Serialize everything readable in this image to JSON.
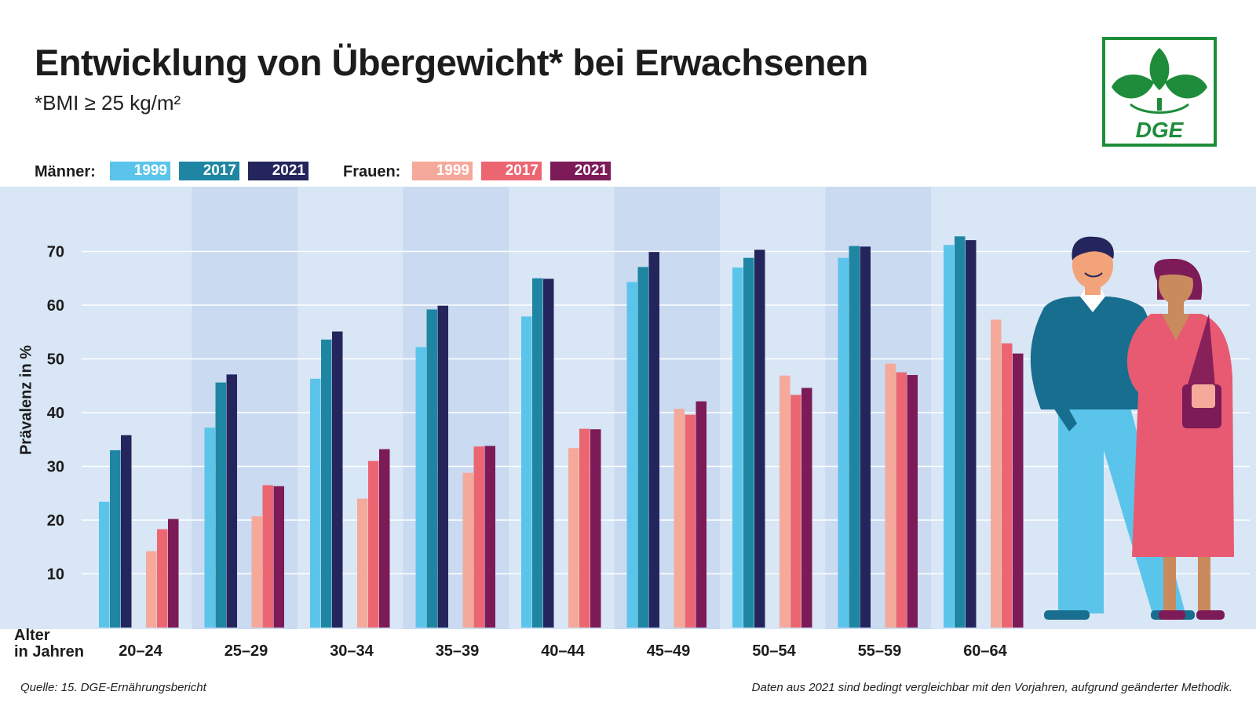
{
  "title": "Entwicklung von Übergewicht* bei Erwachsenen",
  "subtitle": "*BMI ≥ 25 kg/m²",
  "logo": {
    "text": "DGE",
    "color": "#1e8c3a"
  },
  "legend": {
    "men_label": "Männer:",
    "women_label": "Frauen:",
    "men": [
      {
        "year": "1999",
        "color": "#5bc4ea"
      },
      {
        "year": "2017",
        "color": "#1e86a3"
      },
      {
        "year": "2021",
        "color": "#23255c"
      }
    ],
    "women": [
      {
        "year": "1999",
        "color": "#f5a99a"
      },
      {
        "year": "2017",
        "color": "#ec6672"
      },
      {
        "year": "2021",
        "color": "#7d1a58"
      }
    ]
  },
  "chart_data": {
    "type": "bar",
    "title": "Entwicklung von Übergewicht* bei Erwachsenen",
    "subtitle": "*BMI ≥ 25 kg/m²",
    "xlabel": "Alter\nin Jahren",
    "ylabel": "Prävalenz in %",
    "yticks": [
      10,
      20,
      30,
      40,
      50,
      60,
      70
    ],
    "ylim": [
      0,
      80
    ],
    "grid": true,
    "legend_position": "top-left",
    "categories": [
      "20–24",
      "25–29",
      "30–34",
      "35–39",
      "40–44",
      "45–49",
      "50–54",
      "55–59",
      "60–64"
    ],
    "series": [
      {
        "name": "Männer 1999",
        "color": "#5bc4ea",
        "values": [
          23.4,
          37.2,
          46.3,
          52.2,
          57.9,
          64.3,
          67.0,
          68.8,
          71.2
        ]
      },
      {
        "name": "Männer 2017",
        "color": "#1e86a3",
        "values": [
          33.0,
          45.6,
          53.6,
          59.2,
          65.0,
          67.1,
          68.8,
          71.0,
          72.8
        ]
      },
      {
        "name": "Männer 2021",
        "color": "#23255c",
        "values": [
          35.8,
          47.1,
          55.1,
          59.9,
          64.9,
          69.9,
          70.3,
          70.9,
          72.1
        ]
      },
      {
        "name": "Frauen 1999",
        "color": "#f5a99a",
        "values": [
          14.2,
          20.7,
          24.0,
          28.8,
          33.4,
          40.7,
          46.9,
          49.1,
          57.3
        ]
      },
      {
        "name": "Frauen 2017",
        "color": "#ec6672",
        "values": [
          18.3,
          26.5,
          31.0,
          33.7,
          37.0,
          39.6,
          43.3,
          47.5,
          52.9
        ]
      },
      {
        "name": "Frauen 2021",
        "color": "#7d1a58",
        "values": [
          20.2,
          26.3,
          33.2,
          33.8,
          36.9,
          42.1,
          44.6,
          47.0,
          51.0
        ]
      }
    ]
  },
  "source": "Quelle: 15. DGE-Ernährungsbericht",
  "note": "Daten aus 2021 sind bedingt vergleichbar mit den Vorjahren, aufgrund geänderter Methodik."
}
